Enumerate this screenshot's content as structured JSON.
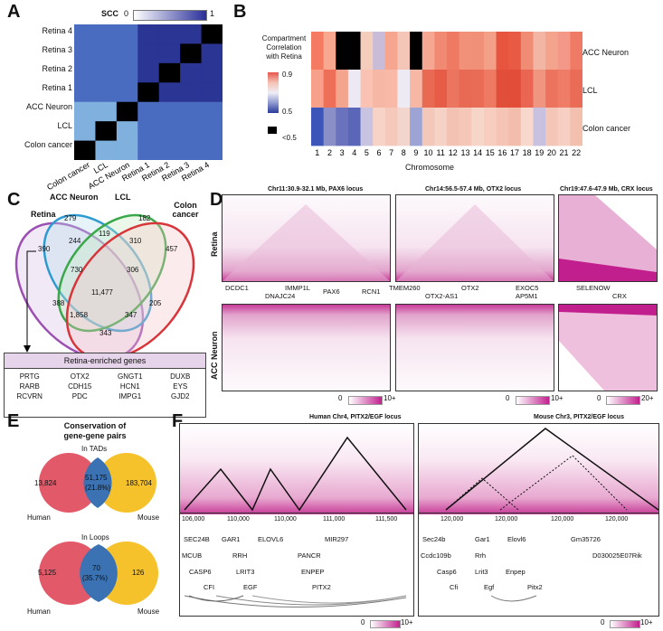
{
  "panels": {
    "A": {
      "label": "A",
      "scale_title": "SCC",
      "scale_min": "0",
      "scale_max": "1",
      "rows": [
        "Retina 4",
        "Retina 3",
        "Retina 2",
        "Retina 1",
        "ACC Neuron",
        "LCL",
        "Colon cancer"
      ],
      "cols": [
        "Colon cancer",
        "LCL",
        "ACC Neuron",
        "Retina 1",
        "Retina 2",
        "Retina 3",
        "Retina 4"
      ]
    },
    "B": {
      "label": "B",
      "legend_title_1": "Compartment",
      "legend_title_2": "Correlation",
      "legend_title_3": "with Retina",
      "legend_max": "0.9",
      "legend_min": "0.5",
      "legend_low": "<0.5",
      "rows": [
        "ACC Neuron",
        "LCL",
        "Colon cancer"
      ],
      "chromosomes": [
        "1",
        "2",
        "3",
        "4",
        "5",
        "6",
        "7",
        "8",
        "9",
        "10",
        "11",
        "12",
        "13",
        "14",
        "15",
        "16",
        "17",
        "18",
        "19",
        "20",
        "21",
        "22"
      ],
      "xlabel": "Chromosome"
    },
    "C": {
      "label": "C",
      "sets": [
        "Retina",
        "ACC Neuron",
        "LCL",
        "Colon cancer"
      ],
      "counts": [
        "279",
        "182",
        "390",
        "457",
        "244",
        "119",
        "310",
        "730",
        "306",
        "11,477",
        "388",
        "1,858",
        "347",
        "205",
        "343"
      ],
      "genes_title": "Retina-enriched genes",
      "genes": [
        "PRTG",
        "OTX2",
        "GNGT1",
        "DUXB",
        "RARB",
        "CDH15",
        "HCN1",
        "EYS",
        "RCVRN",
        "PDC",
        "IMPG1",
        "GJD2"
      ]
    },
    "D": {
      "label": "D",
      "loci": [
        "Chr11:30.9-32.1 Mb, PAX6 locus",
        "Chr14:56.5-57.4 Mb, OTX2 locus",
        "Chr19:47.6-47.9 Mb, CRX locus"
      ],
      "rows": [
        "Retina",
        "ACC Neuron"
      ],
      "genes1": [
        "DCDC1",
        "IMMP1L",
        "DNAJC24",
        "PAX6",
        "RCN1"
      ],
      "genes2": [
        "TMEM260",
        "OTX2",
        "OTX2-AS1",
        "EXOC5",
        "AP5M1"
      ],
      "genes3": [
        "SELENOW",
        "CRX"
      ],
      "scale_min": "0",
      "scale_max1": "10+",
      "scale_max2": "10+",
      "scale_max3": "20+"
    },
    "E": {
      "label": "E",
      "title_1": "Conservation of",
      "title_2": "gene-gene pairs",
      "tads_label": "In TADs",
      "tads_human": "13,824",
      "tads_shared": "51,175",
      "tads_pct": "(21.8%)",
      "tads_mouse": "183,704",
      "loops_label": "In Loops",
      "loops_human": "5,125",
      "loops_shared": "70",
      "loops_pct": "(35.7%)",
      "loops_mouse": "126",
      "human": "Human",
      "mouse": "Mouse"
    },
    "F": {
      "label": "F",
      "human_title": "Human Chr4, PITX2/EGF locus",
      "mouse_title": "Mouse Chr3, PITX2/EGF locus",
      "human_ticks": [
        "106,000",
        "110,000",
        "110,000",
        "111,000",
        "111,500"
      ],
      "mouse_ticks": [
        "120,000",
        "120,000",
        "120,000",
        "120,000"
      ],
      "human_genes": [
        "SEC24B",
        "GAR1",
        "ELOVL6",
        "MIR297",
        "MCUB",
        "RRH",
        "PANCR",
        "CASP6",
        "LRIT3",
        "ENPEP",
        "CFI",
        "EGF",
        "PITX2"
      ],
      "mouse_genes": [
        "Sec24b",
        "Gar1",
        "Elovl6",
        "Gm35726",
        "Ccdc109b",
        "Rrh",
        "D030025E07Rik",
        "Casp6",
        "Lrit3",
        "Enpep",
        "Cfi",
        "Egf",
        "Pitx2"
      ],
      "scale_min": "0",
      "scale_max": "10+"
    }
  },
  "colors": {
    "blue_dark": "#1f2a8c",
    "blue_light": "#8fb8e0",
    "red": "#e8544a",
    "magenta": "#c2198a",
    "venn_human": "#e25a6a",
    "venn_mouse": "#f6c22c",
    "venn_overlap": "#3a72b4"
  }
}
